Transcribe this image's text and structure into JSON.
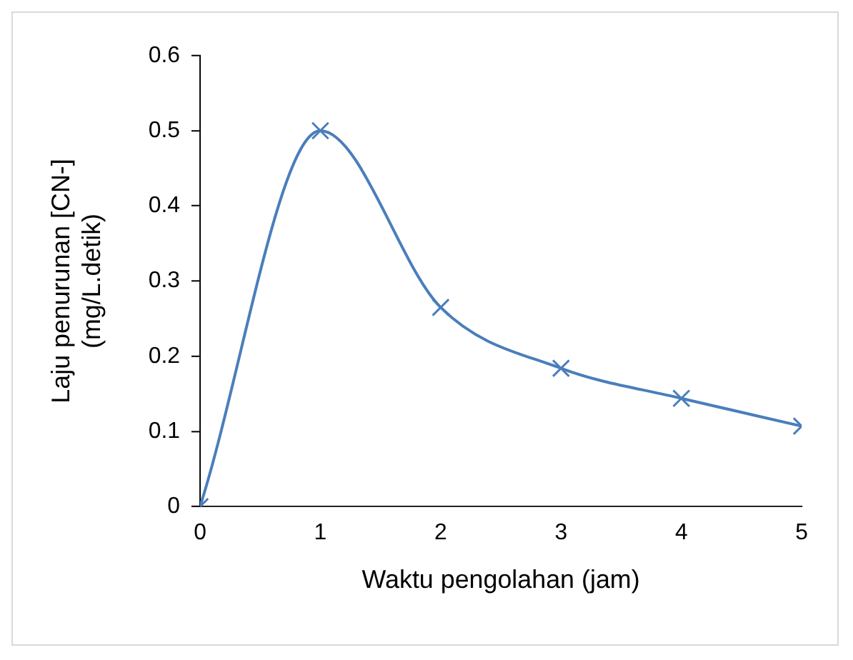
{
  "chart_data": {
    "type": "line",
    "xlabel": "Waktu pengolahan (jam)",
    "ylabel": "Laju penurunan [CN-]\n(mg/L.detik)",
    "x": [
      0,
      1,
      2,
      3,
      4,
      5
    ],
    "series": [
      {
        "color": "#4a7ebb",
        "values": [
          0,
          0.5,
          0.265,
          0.184,
          0.144,
          0.107
        ]
      }
    ],
    "xlim": [
      0,
      5
    ],
    "xticks": [
      0,
      1,
      2,
      3,
      4,
      5
    ],
    "ylim": [
      0,
      0.6
    ],
    "yticks": [
      0,
      0.1,
      0.2,
      0.3,
      0.4,
      0.5,
      0.6
    ],
    "marker": "cross",
    "line_style": "solid",
    "grid": false,
    "legend": false
  }
}
